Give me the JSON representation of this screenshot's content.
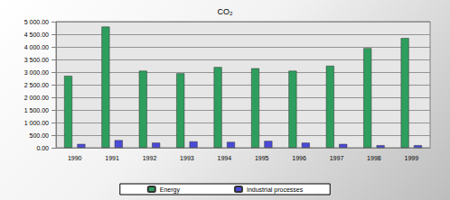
{
  "chart_data": {
    "type": "bar",
    "title": "CO₂",
    "categories": [
      "1990",
      "1991",
      "1992",
      "1993",
      "1994",
      "1995",
      "1996",
      "1997",
      "1998",
      "1999"
    ],
    "series": [
      {
        "name": "Energy",
        "color": "#2e9e5e",
        "values": [
          2850,
          4800,
          3050,
          2950,
          3200,
          3150,
          3050,
          3250,
          3950,
          4350
        ]
      },
      {
        "name": "Industrial processes",
        "color": "#4a4ad8",
        "values": [
          150,
          300,
          200,
          250,
          230,
          270,
          200,
          150,
          100,
          100
        ]
      }
    ],
    "ylim": [
      0,
      5000
    ],
    "yticks": [
      {
        "value": 0,
        "label": "0.00"
      },
      {
        "value": 500,
        "label": "500.00"
      },
      {
        "value": 1000,
        "label": "1 000.00"
      },
      {
        "value": 1500,
        "label": "1 500.00"
      },
      {
        "value": 2000,
        "label": "2 000.00"
      },
      {
        "value": 2500,
        "label": "2 500.00"
      },
      {
        "value": 3000,
        "label": "3 000.00"
      },
      {
        "value": 3500,
        "label": "3 500.00"
      },
      {
        "value": 4000,
        "label": "4 000.00"
      },
      {
        "value": 4500,
        "label": "4 500.00"
      },
      {
        "value": 5000,
        "label": "5 000.00"
      }
    ],
    "grid": true,
    "legend": "bottom"
  }
}
